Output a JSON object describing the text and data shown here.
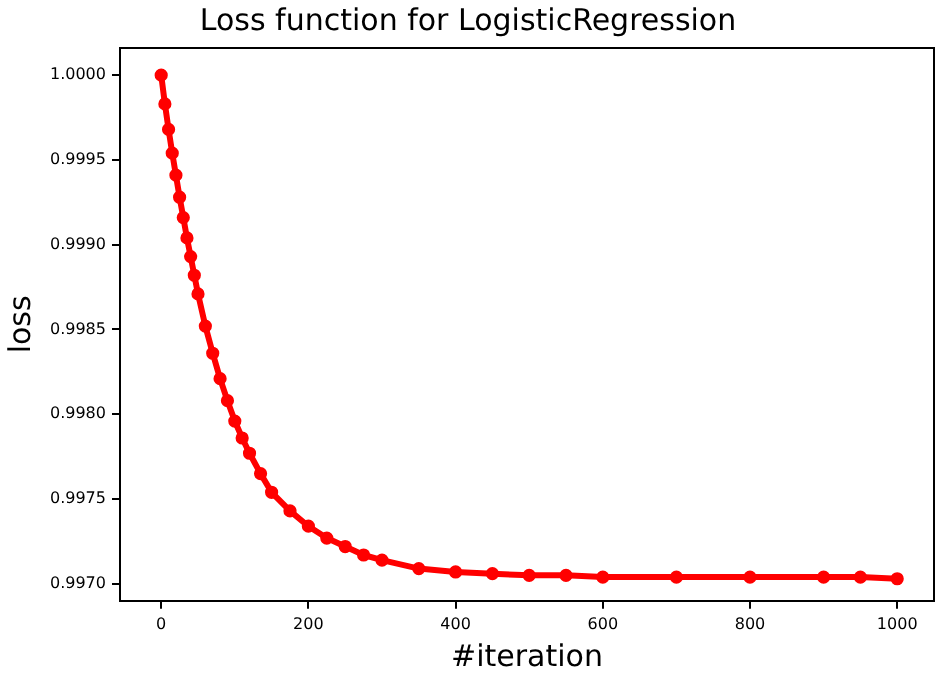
{
  "chart_data": {
    "type": "line",
    "title": "Loss function for LogisticRegression",
    "xlabel": "#iteration",
    "ylabel": "loss",
    "series": [
      {
        "color": "#ff0000",
        "x": [
          0,
          5,
          10,
          15,
          20,
          25,
          30,
          35,
          40,
          45,
          50,
          60,
          70,
          80,
          90,
          100,
          110,
          120,
          135,
          150,
          175,
          200,
          225,
          250,
          275,
          300,
          350,
          400,
          450,
          500,
          550,
          600,
          700,
          800,
          900,
          950,
          1000
        ],
        "values": [
          1.0,
          0.99983,
          0.99968,
          0.99954,
          0.99941,
          0.99928,
          0.99916,
          0.99904,
          0.99893,
          0.99882,
          0.99871,
          0.99852,
          0.99836,
          0.99821,
          0.99808,
          0.99796,
          0.99786,
          0.99777,
          0.99765,
          0.99754,
          0.99743,
          0.99734,
          0.99727,
          0.99722,
          0.99717,
          0.99714,
          0.99709,
          0.99707,
          0.99706,
          0.99705,
          0.99705,
          0.99704,
          0.99704,
          0.99704,
          0.99704,
          0.99704,
          0.99703
        ]
      }
    ],
    "xlim": [
      -56,
      1050
    ],
    "xticks": [
      0,
      200,
      400,
      600,
      800,
      1000
    ],
    "ylim": [
      0.9969,
      1.00016
    ],
    "yticks": [
      {
        "value": 0.997,
        "label": "0.9970"
      },
      {
        "value": 0.9975,
        "label": "0.9975"
      },
      {
        "value": 0.998,
        "label": "0.9980"
      },
      {
        "value": 0.9985,
        "label": "0.9985"
      },
      {
        "value": 0.999,
        "label": "0.9990"
      },
      {
        "value": 0.9995,
        "label": "0.9995"
      },
      {
        "value": 1,
        "label": "1.0000"
      }
    ],
    "marker": "circle",
    "grid": false,
    "legend": false
  }
}
